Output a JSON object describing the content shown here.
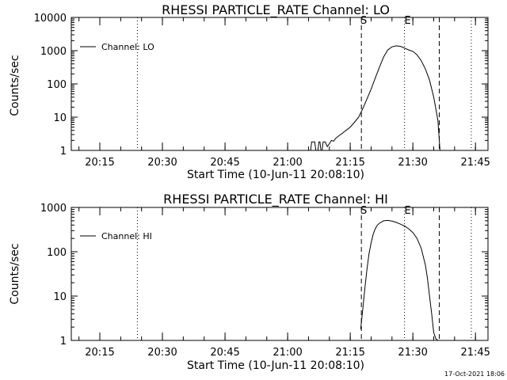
{
  "footer": {
    "timestamp": "17-Oct-2021 18:06"
  },
  "chart_data": [
    {
      "type": "line",
      "title": "RHESSI PARTICLE_RATE Channel: LO",
      "xlabel": "Start Time (10-Jun-11 20:08:10)",
      "ylabel": "Counts/sec",
      "yscale": "log",
      "xlim": [
        "20:08:10",
        "21:48:00"
      ],
      "ylim": [
        1,
        10000
      ],
      "x_ticks": [
        "20:15",
        "20:30",
        "20:45",
        "21:00",
        "21:15",
        "21:30",
        "21:45"
      ],
      "y_ticks": [
        "1",
        "10",
        "100",
        "1000",
        "10000"
      ],
      "legend_position": "top-left",
      "series": [
        {
          "name": "Channel: LO",
          "x": [
            "21:05:30",
            "21:05:45",
            "21:06:00",
            "21:06:15",
            "21:06:30",
            "21:06:45",
            "21:07:00",
            "21:07:15",
            "21:07:30",
            "21:07:45",
            "21:08:00",
            "21:08:15",
            "21:08:30",
            "21:08:45",
            "21:09:00",
            "21:09:30",
            "21:10:00",
            "21:10:30",
            "21:11:00",
            "21:11:30",
            "21:12:00",
            "21:12:30",
            "21:13:00",
            "21:13:30",
            "21:14:00",
            "21:15:00",
            "21:16:00",
            "21:17:00",
            "21:18:00",
            "21:19:00",
            "21:20:00",
            "21:21:00",
            "21:22:00",
            "21:23:00",
            "21:24:00",
            "21:25:00",
            "21:26:00",
            "21:27:00",
            "21:28:00",
            "21:29:00",
            "21:30:00",
            "21:31:00",
            "21:32:00",
            "21:33:00",
            "21:34:00",
            "21:35:00",
            "21:36:00",
            "21:36:30"
          ],
          "y": [
            1,
            1.8,
            1.8,
            1.8,
            1.8,
            1,
            1,
            1,
            1.8,
            1.8,
            1,
            1,
            1.8,
            1.8,
            1.8,
            1.3,
            1.6,
            2,
            1.9,
            2.3,
            2.6,
            2.9,
            3.2,
            3.6,
            4,
            5,
            7,
            10,
            18,
            35,
            70,
            150,
            320,
            650,
            1050,
            1300,
            1400,
            1350,
            1200,
            1050,
            950,
            750,
            500,
            280,
            130,
            40,
            8,
            1
          ]
        }
      ],
      "vlines": [
        {
          "x": "20:24:00",
          "style": "dotted"
        },
        {
          "x": "21:17:40",
          "style": "dashed",
          "label": "S"
        },
        {
          "x": "21:28:00",
          "style": "dotted",
          "label": "E"
        },
        {
          "x": "21:36:20",
          "style": "dashed"
        },
        {
          "x": "21:44:00",
          "style": "dotted"
        }
      ]
    },
    {
      "type": "line",
      "title": "RHESSI PARTICLE_RATE Channel: HI",
      "xlabel": "Start Time (10-Jun-11 20:08:10)",
      "ylabel": "Counts/sec",
      "yscale": "log",
      "xlim": [
        "20:08:10",
        "21:48:00"
      ],
      "ylim": [
        1,
        1000
      ],
      "x_ticks": [
        "20:15",
        "20:30",
        "20:45",
        "21:00",
        "21:15",
        "21:30",
        "21:45"
      ],
      "y_ticks": [
        "1",
        "10",
        "100",
        "1000"
      ],
      "legend_position": "top-left",
      "series": [
        {
          "name": "Channel: HI",
          "x": [
            "21:17:30",
            "21:18:00",
            "21:18:30",
            "21:19:00",
            "21:19:30",
            "21:20:00",
            "21:20:30",
            "21:21:00",
            "21:21:30",
            "21:22:00",
            "21:23:00",
            "21:24:00",
            "21:25:00",
            "21:26:00",
            "21:27:00",
            "21:28:00",
            "21:29:00",
            "21:30:00",
            "21:31:00",
            "21:32:00",
            "21:33:00",
            "21:33:30",
            "21:34:00",
            "21:34:30",
            "21:35:00",
            "21:35:30",
            "21:36:00"
          ],
          "y": [
            1.8,
            5,
            15,
            40,
            90,
            160,
            250,
            330,
            400,
            440,
            500,
            510,
            490,
            460,
            420,
            380,
            330,
            270,
            200,
            120,
            50,
            25,
            10,
            4,
            1.5,
            1.1,
            1
          ]
        }
      ],
      "vlines": [
        {
          "x": "20:24:00",
          "style": "dotted"
        },
        {
          "x": "21:17:40",
          "style": "dashed",
          "label": "S"
        },
        {
          "x": "21:28:00",
          "style": "dotted",
          "label": "E"
        },
        {
          "x": "21:36:20",
          "style": "dashed"
        },
        {
          "x": "21:44:00",
          "style": "dotted"
        }
      ]
    }
  ]
}
